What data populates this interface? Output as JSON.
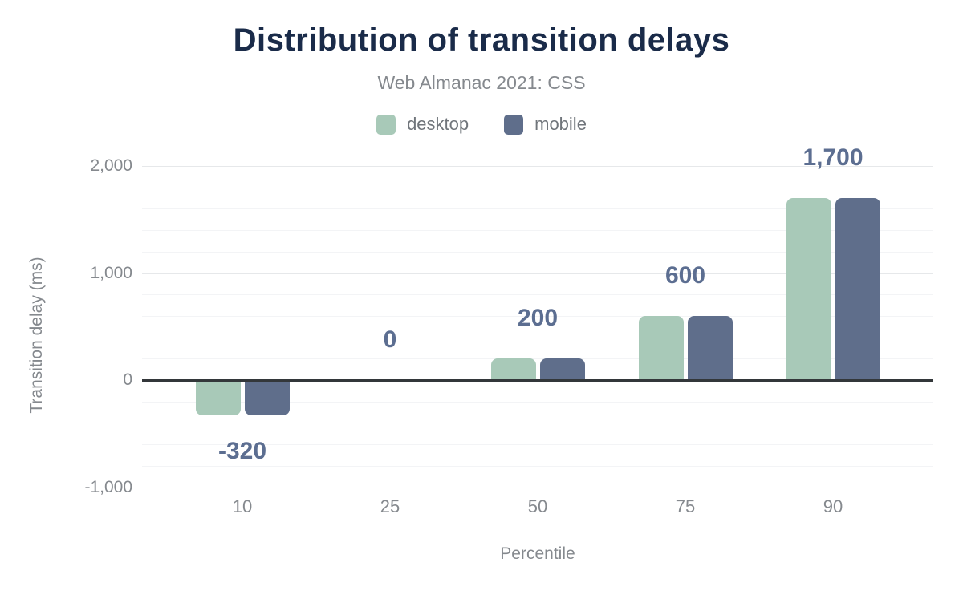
{
  "chart_data": {
    "type": "bar",
    "title": "Distribution of transition delays",
    "subtitle": "Web Almanac 2021: CSS",
    "xlabel": "Percentile",
    "ylabel": "Transition delay (ms)",
    "categories": [
      "10",
      "25",
      "50",
      "75",
      "90"
    ],
    "series": [
      {
        "name": "desktop",
        "color": "#a8c9b8",
        "values": [
          -320,
          0,
          200,
          600,
          1700
        ]
      },
      {
        "name": "mobile",
        "color": "#5f6e8b",
        "values": [
          -320,
          0,
          200,
          600,
          1700
        ]
      }
    ],
    "value_labels": [
      "-320",
      "0",
      "200",
      "600",
      "1,700"
    ],
    "ylim": [
      -1000,
      2000
    ],
    "yticks": [
      {
        "value": -1000,
        "label": "-1,000"
      },
      {
        "value": 0,
        "label": "0"
      },
      {
        "value": 1000,
        "label": "1,000"
      },
      {
        "value": 2000,
        "label": "2,000"
      }
    ],
    "gridline_interval": 200,
    "grid": true,
    "legend_position": "top",
    "zero_line": true
  },
  "colors": {
    "title": "#1a2b49",
    "subtitle_text": "#85898e",
    "axis_text": "#85898e",
    "value_label": "#5c6e91",
    "zero_line": "#33373a",
    "gridline_minor": "#f3f4f6",
    "gridline_major": "#e6e8ea",
    "desktop": "#a8c9b8",
    "mobile": "#5f6e8b"
  }
}
